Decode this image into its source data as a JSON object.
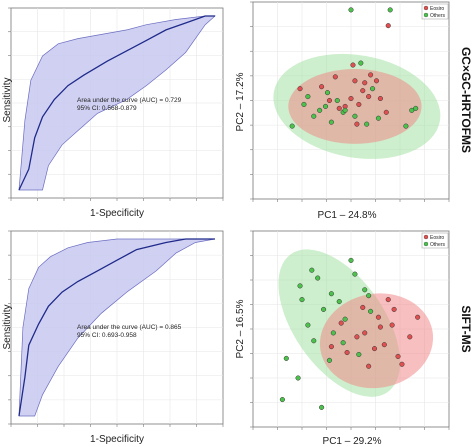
{
  "row_labels": [
    "GC×GC-HRTOFMS",
    "SIFT-MS"
  ],
  "colors": {
    "roc_band": "#c8c9f0",
    "roc_band_edge": "#6a6cc0",
    "roc_line": "#1f2a8a",
    "eosiro": "#e05050",
    "eosiro_ellipse": "#f08a8a",
    "others": "#4cc24c",
    "others_ellipse": "#9be09b",
    "overlap": "#b8a070"
  },
  "chart_data": [
    {
      "type": "line",
      "panel": "roc-top",
      "xlabel": "1-Specificity",
      "ylabel": "Sensitivity",
      "xlim": [
        0,
        1
      ],
      "ylim": [
        0,
        1
      ],
      "grid": true,
      "annotation": [
        "Area under the curve (AUC) = 0.729",
        "95% CI: 0.568-0.879"
      ],
      "series": [
        {
          "role": "curve",
          "x": [
            0,
            0.05,
            0.08,
            0.12,
            0.18,
            0.25,
            0.33,
            0.45,
            0.55,
            0.65,
            0.75,
            0.85,
            0.95,
            1.0
          ],
          "y": [
            0,
            0.12,
            0.3,
            0.42,
            0.52,
            0.6,
            0.66,
            0.74,
            0.8,
            0.86,
            0.92,
            0.96,
            1.0,
            1.0
          ]
        },
        {
          "role": "ci_upper",
          "x": [
            0,
            0.03,
            0.06,
            0.12,
            0.2,
            0.3,
            0.4,
            0.55,
            0.65,
            0.8,
            0.95,
            1.0
          ],
          "y": [
            0,
            0.4,
            0.63,
            0.77,
            0.84,
            0.87,
            0.89,
            0.92,
            0.95,
            0.98,
            1.0,
            1.0
          ]
        },
        {
          "role": "ci_lower",
          "x": [
            0,
            0.12,
            0.15,
            0.22,
            0.3,
            0.4,
            0.55,
            0.65,
            0.75,
            0.85,
            0.95,
            1.0
          ],
          "y": [
            0,
            0.0,
            0.14,
            0.26,
            0.34,
            0.44,
            0.52,
            0.6,
            0.69,
            0.79,
            0.95,
            1.0
          ]
        }
      ]
    },
    {
      "type": "scatter",
      "panel": "pca-top",
      "xlabel": "PC1 – 24.8%",
      "ylabel": "PC2 – 17.2%",
      "xlim": [
        -5,
        5
      ],
      "ylim": [
        -5,
        5
      ],
      "grid": true,
      "legend": {
        "placement": "top-right",
        "entries": [
          "Eosiro",
          "Others"
        ]
      },
      "ellipses": [
        {
          "group": "Others",
          "cx": 0.3,
          "cy": -0.3,
          "rx": 4.3,
          "ry": 2.6,
          "angle": -10
        },
        {
          "group": "Eosiro",
          "cx": 0.2,
          "cy": -0.3,
          "rx": 3.4,
          "ry": 1.9,
          "angle": 0
        }
      ],
      "series": [
        {
          "name": "Eosiro",
          "x": [
            1.9,
            -0.8,
            0.2,
            0.6,
            1.0,
            -1.1,
            -0.3,
            0.9,
            1.8,
            0.3,
            -1.5,
            0.0,
            1.3,
            -2.6,
            0.4,
            0.7,
            1.5,
            -0.6,
            0.1
          ],
          "y": [
            3.8,
            1.2,
            1.0,
            0.5,
            1.3,
            0.0,
            -0.3,
            0.2,
            -0.6,
            -1.2,
            0.7,
            0.1,
            1.0,
            0.6,
            -0.2,
            0.9,
            0.1,
            -0.4,
            1.8
          ]
        },
        {
          "name": "Others",
          "x": [
            0.0,
            2.0,
            -1.3,
            -1.6,
            -1.9,
            -0.4,
            -0.3,
            3.3,
            2.8,
            -3.0,
            -0.7,
            0.8,
            -1.0,
            1.4,
            3.1,
            -2.2,
            0.2,
            -1.2,
            1.1,
            -2.4,
            0.5
          ],
          "y": [
            4.6,
            4.6,
            -0.3,
            -0.5,
            -0.8,
            -0.6,
            -0.5,
            -0.4,
            -1.3,
            -1.3,
            0.0,
            -1.2,
            -1.1,
            -0.9,
            -0.5,
            0.2,
            -0.8,
            0.4,
            0.6,
            -0.2,
            1.9
          ]
        }
      ]
    },
    {
      "type": "line",
      "panel": "roc-bottom",
      "xlabel": "1-Specificity",
      "ylabel": "Sensitivity",
      "xlim": [
        0,
        1
      ],
      "ylim": [
        0,
        1
      ],
      "grid": true,
      "annotation": [
        "Area under the curve (AUC) = 0.865",
        "95% CI: 0.693-0.958"
      ],
      "series": [
        {
          "role": "curve",
          "x": [
            0,
            0.03,
            0.05,
            0.1,
            0.15,
            0.22,
            0.3,
            0.4,
            0.5,
            0.6,
            0.75,
            0.85,
            1.0
          ],
          "y": [
            0,
            0.22,
            0.4,
            0.52,
            0.62,
            0.7,
            0.76,
            0.82,
            0.88,
            0.94,
            0.98,
            1.0,
            1.0
          ]
        },
        {
          "role": "ci_upper",
          "x": [
            0,
            0.02,
            0.05,
            0.1,
            0.16,
            0.25,
            0.35,
            0.5,
            0.6,
            1.0
          ],
          "y": [
            0,
            0.5,
            0.72,
            0.84,
            0.9,
            0.95,
            0.98,
            1.0,
            1.0,
            1.0
          ]
        },
        {
          "role": "ci_lower",
          "x": [
            0,
            0.08,
            0.12,
            0.2,
            0.3,
            0.42,
            0.55,
            0.7,
            0.8,
            0.9,
            1.0
          ],
          "y": [
            0,
            0.0,
            0.12,
            0.28,
            0.44,
            0.58,
            0.7,
            0.82,
            0.92,
            0.98,
            1.0
          ]
        }
      ]
    },
    {
      "type": "scatter",
      "panel": "pca-bottom",
      "xlabel": "PC1 – 29.2%",
      "ylabel": "PC2 – 16.5%",
      "xlim": [
        -5,
        5
      ],
      "ylim": [
        -5,
        5
      ],
      "grid": true,
      "legend": {
        "placement": "top-right",
        "entries": [
          "Eosiro",
          "Others"
        ]
      },
      "ellipses": [
        {
          "group": "Others",
          "cx": -0.6,
          "cy": 0.3,
          "rx": 2.3,
          "ry": 4.3,
          "angle": 35
        },
        {
          "group": "Eosiro",
          "cx": 1.3,
          "cy": -0.6,
          "rx": 2.9,
          "ry": 2.4,
          "angle": 10
        }
      ],
      "series": [
        {
          "name": "Eosiro",
          "x": [
            0.6,
            1.4,
            2.1,
            1.7,
            3.0,
            2.4,
            1.2,
            0.3,
            -0.5,
            1.9,
            2.6,
            0.9,
            -0.2,
            1.5,
            3.4,
            2.2,
            0.7,
            -1.0
          ],
          "y": [
            1.1,
            0.6,
            0.2,
            -0.8,
            -0.4,
            -1.4,
            -1.0,
            -0.4,
            0.3,
            1.5,
            -1.8,
            -1.9,
            -1.2,
            0.1,
            0.6,
            1.0,
            -0.2,
            -0.9
          ]
        },
        {
          "name": "Others",
          "x": [
            -2.5,
            -1.7,
            -1.0,
            0.0,
            0.7,
            -0.3,
            -1.9,
            -3.3,
            -2.7,
            -1.5,
            0.4,
            -0.9,
            1.0,
            -1.4,
            -2.0,
            -0.6,
            0.2,
            -2.2,
            -3.5,
            -1.1,
            0.9,
            -0.4,
            -2.6
          ],
          "y": [
            1.5,
            2.6,
            1.8,
            3.5,
            2.0,
            0.5,
            -0.6,
            -1.5,
            -2.5,
            -4.0,
            -1.3,
            -0.2,
            0.9,
            1.0,
            3.0,
            1.4,
            2.8,
            0.2,
            -3.6,
            -1.6,
            1.7,
            -0.7,
            2.2
          ]
        }
      ]
    }
  ]
}
